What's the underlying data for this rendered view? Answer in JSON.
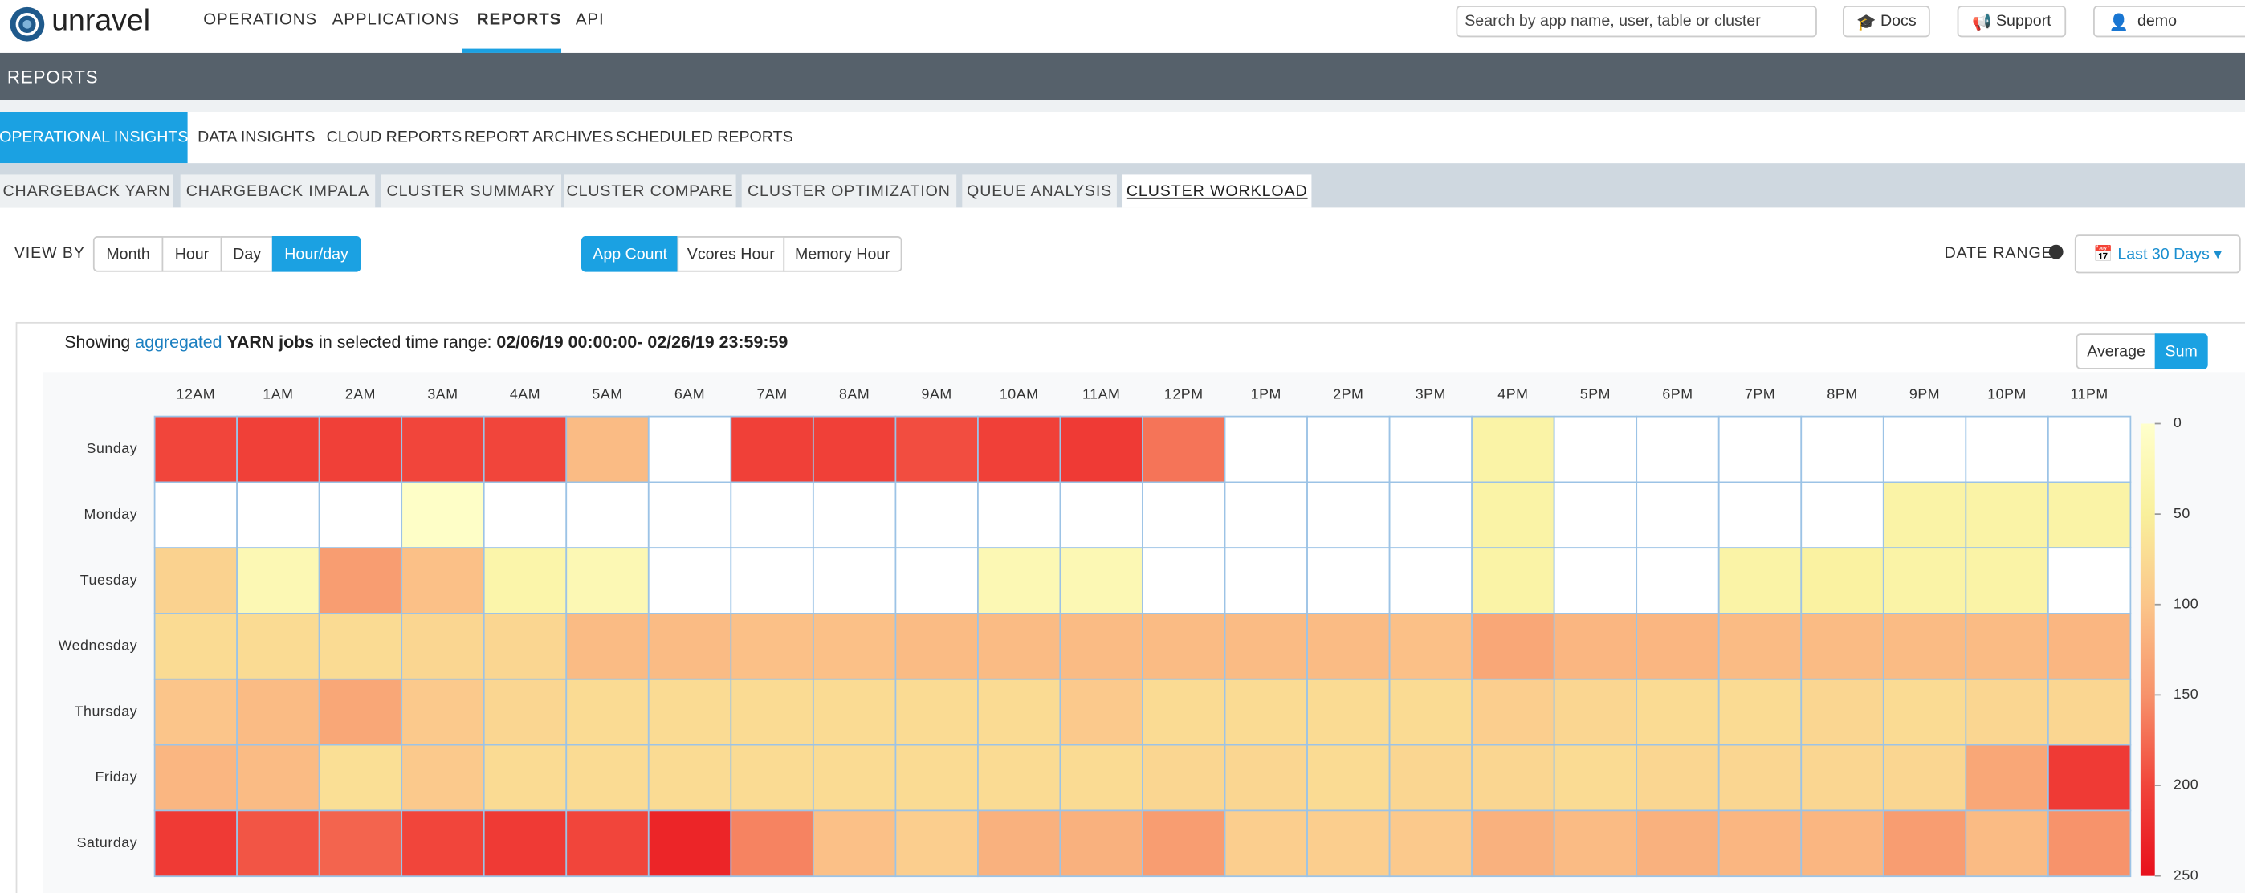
{
  "header": {
    "logo": "unravel",
    "nav": [
      "OPERATIONS",
      "APPLICATIONS",
      "REPORTS",
      "API"
    ],
    "search_placeholder": "Search by app name, user, table or cluster",
    "buttons": [
      "Docs",
      "Support"
    ],
    "user": "demo"
  },
  "page_title": "REPORTS",
  "tabs": [
    "OPERATIONAL INSIGHTS",
    "DATA INSIGHTS",
    "CLOUD REPORTS",
    "REPORT ARCHIVES",
    "SCHEDULED REPORTS"
  ],
  "subtabs": [
    "CHARGEBACK YARN",
    "CHARGEBACK IMPALA",
    "CLUSTER SUMMARY",
    "CLUSTER COMPARE",
    "CLUSTER OPTIMIZATION",
    "QUEUE ANALYSIS",
    "CLUSTER WORKLOAD"
  ],
  "view_by": {
    "label": "VIEW BY",
    "options": [
      "Month",
      "Hour",
      "Day",
      "Hour/day"
    ]
  },
  "metrics": [
    "App Count",
    "Vcores Hour",
    "Memory Hour"
  ],
  "date_range": {
    "label": "DATE RANGE",
    "value": "Last 30 Days"
  },
  "summary": {
    "prefix": "Showing",
    "link": "aggregated",
    "subject": "YARN jobs",
    "middle": "in selected time range:",
    "range": "02/06/19 00:00:00- 02/26/19 23:59:59"
  },
  "aggregation": [
    "Average",
    "Sum"
  ],
  "chart_data": {
    "type": "heatmap",
    "x": [
      "12AM",
      "1AM",
      "2AM",
      "3AM",
      "4AM",
      "5AM",
      "6AM",
      "7AM",
      "8AM",
      "9AM",
      "10AM",
      "11AM",
      "12PM",
      "1PM",
      "2PM",
      "3PM",
      "4PM",
      "5PM",
      "6PM",
      "7PM",
      "8PM",
      "9PM",
      "10PM",
      "11PM"
    ],
    "y": [
      "Sunday",
      "Monday",
      "Tuesday",
      "Wednesday",
      "Thursday",
      "Friday",
      "Saturday"
    ],
    "values": [
      [
        200,
        205,
        205,
        200,
        200,
        110,
        null,
        205,
        205,
        195,
        205,
        210,
        170,
        null,
        null,
        null,
        40,
        null,
        null,
        null,
        null,
        null,
        null,
        null
      ],
      [
        null,
        null,
        null,
        5,
        null,
        null,
        null,
        null,
        null,
        null,
        null,
        null,
        null,
        null,
        null,
        null,
        40,
        null,
        null,
        null,
        null,
        40,
        40,
        40
      ],
      [
        85,
        25,
        140,
        105,
        35,
        25,
        null,
        null,
        null,
        null,
        25,
        25,
        null,
        null,
        null,
        null,
        40,
        null,
        null,
        40,
        45,
        40,
        40,
        null
      ],
      [
        75,
        75,
        75,
        80,
        80,
        110,
        110,
        105,
        105,
        110,
        110,
        110,
        110,
        110,
        110,
        105,
        130,
        115,
        115,
        110,
        110,
        110,
        110,
        115
      ],
      [
        100,
        110,
        130,
        95,
        80,
        75,
        75,
        75,
        75,
        75,
        75,
        95,
        75,
        75,
        75,
        75,
        90,
        80,
        75,
        75,
        80,
        75,
        80,
        80
      ],
      [
        115,
        110,
        70,
        95,
        75,
        75,
        75,
        75,
        75,
        75,
        75,
        75,
        80,
        80,
        75,
        80,
        80,
        75,
        80,
        80,
        80,
        80,
        130,
        210
      ],
      [
        210,
        190,
        180,
        200,
        210,
        200,
        230,
        160,
        105,
        90,
        120,
        120,
        140,
        90,
        90,
        95,
        120,
        110,
        120,
        115,
        115,
        140,
        110,
        150
      ]
    ],
    "zlim": [
      0,
      250
    ],
    "zticks": [
      0,
      50,
      100,
      150,
      200,
      250
    ],
    "colors": [
      "#ffffcc",
      "#f9f09c",
      "#fbc58a",
      "#f7936b",
      "#f1453b",
      "#e8101c"
    ]
  }
}
